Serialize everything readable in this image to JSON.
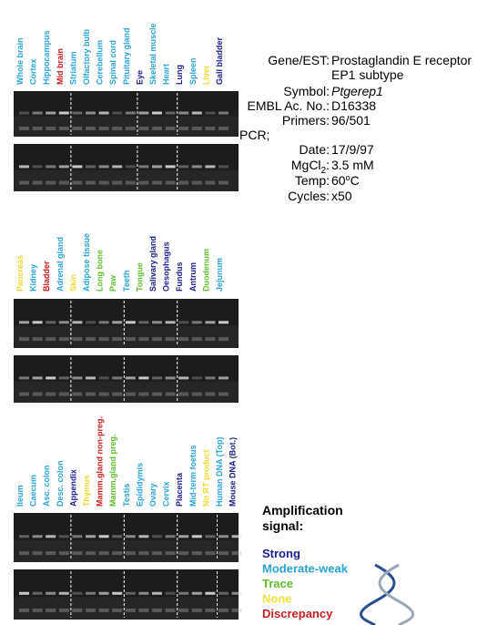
{
  "panels": [
    {
      "lanes": [
        {
          "label": "Whole brain",
          "color": "#29a3d9"
        },
        {
          "label": "Cortex",
          "color": "#29a3d9"
        },
        {
          "label": "Hippocampus",
          "color": "#29a3d9"
        },
        {
          "label": "Mid brain",
          "color": "#c81e1e"
        },
        {
          "label": "Striatum",
          "color": "#29a3d9"
        },
        {
          "label": "Olfactory bulb",
          "color": "#29a3d9"
        },
        {
          "label": "Cerebellum",
          "color": "#29a3d9"
        },
        {
          "label": "Spinal cord",
          "color": "#29a3d9"
        },
        {
          "label": "Pituitary gland",
          "color": "#29a3d9"
        },
        {
          "label": "Eye",
          "color": "#1b1b8f"
        },
        {
          "label": "Skeletal muscle",
          "color": "#29a3d9"
        },
        {
          "label": "Heart",
          "color": "#29a3d9"
        },
        {
          "label": "Lung",
          "color": "#1b1b8f"
        },
        {
          "label": "Spleen",
          "color": "#29a3d9"
        },
        {
          "label": "Liver",
          "color": "#f0d830"
        },
        {
          "label": "Gall bladder",
          "color": "#1b1b8f"
        }
      ]
    },
    {
      "lanes": [
        {
          "label": "Pancreas",
          "color": "#f0d830"
        },
        {
          "label": "Kidney",
          "color": "#29a3d9"
        },
        {
          "label": "Bladder",
          "color": "#c81e1e"
        },
        {
          "label": "Adrenal gland",
          "color": "#29a3d9"
        },
        {
          "label": "Skin",
          "color": "#f0d830"
        },
        {
          "label": "Adipose tissue",
          "color": "#29a3d9"
        },
        {
          "label": "Long bone",
          "color": "#5fbf2a"
        },
        {
          "label": "Paw",
          "color": "#5fbf2a"
        },
        {
          "label": "Teeth",
          "color": "#29a3d9"
        },
        {
          "label": "Tongue",
          "color": "#5fbf2a"
        },
        {
          "label": "Salivary gland",
          "color": "#1b1b8f"
        },
        {
          "label": "Oesophagus",
          "color": "#1b1b8f"
        },
        {
          "label": "Fundus",
          "color": "#1b1b8f"
        },
        {
          "label": "Antrum",
          "color": "#1b1b8f"
        },
        {
          "label": "Duodenum",
          "color": "#5fbf2a"
        },
        {
          "label": "Jejunum",
          "color": "#29a3d9"
        }
      ]
    },
    {
      "lanes": [
        {
          "label": "Ileum",
          "color": "#29a3d9"
        },
        {
          "label": "Caecum",
          "color": "#29a3d9"
        },
        {
          "label": "Asc. colon",
          "color": "#29a3d9"
        },
        {
          "label": "Desc. colon",
          "color": "#29a3d9"
        },
        {
          "label": "Appendix",
          "color": "#1b1b8f"
        },
        {
          "label": "Thymus",
          "color": "#f0d830"
        },
        {
          "label": "Mamm.gland non-preg.",
          "color": "#c81e1e"
        },
        {
          "label": "Mamm.gland preg.",
          "color": "#5fbf2a"
        },
        {
          "label": "Testis",
          "color": "#29a3d9"
        },
        {
          "label": "Epididymis",
          "color": "#29a3d9"
        },
        {
          "label": "Ovary",
          "color": "#29a3d9"
        },
        {
          "label": "Cervix",
          "color": "#29a3d9"
        },
        {
          "label": "Placenta",
          "color": "#1b1b8f"
        },
        {
          "label": "Mid-term foetus",
          "color": "#29a3d9"
        },
        {
          "label": "No RT product",
          "color": "#f0d830"
        },
        {
          "label": "Human DNA (Top)",
          "color": "#29a3d9"
        },
        {
          "label": "Mouse DNA (Bot.)",
          "color": "#1b1b8f"
        }
      ]
    }
  ],
  "info": {
    "gene_label": "Gene/EST:",
    "gene": "Prostaglandin E receptor",
    "gene_line2": "EP1 subtype",
    "symbol_label": "Symbol:",
    "symbol": "Ptgerep1",
    "embl_label": "EMBL Ac. No.:",
    "embl": "D16338",
    "primers_label": "Primers:",
    "primers": "96/501",
    "pcr": "PCR;",
    "date_label": "Date:",
    "date": "17/9/97",
    "mgcl_label": "MgCl",
    "mgcl_sub": "2",
    "mgcl_colon": ":",
    "mgcl": "3.5 mM",
    "temp_label": "Temp:",
    "temp": "60",
    "temp_sup": "o",
    "temp_unit": "C",
    "cycles_label": "Cycles:",
    "cycles": "x50"
  },
  "legend": {
    "title": [
      "Amplification",
      "signal:"
    ],
    "items": [
      {
        "label": "Strong",
        "color": "#1b1b8f"
      },
      {
        "label": "Moderate-weak",
        "color": "#29a3d9"
      },
      {
        "label": "Trace",
        "color": "#5fbf2a"
      },
      {
        "label": "None",
        "color": "#f0e040"
      },
      {
        "label": "Discrepancy",
        "color": "#c81e1e"
      }
    ]
  }
}
